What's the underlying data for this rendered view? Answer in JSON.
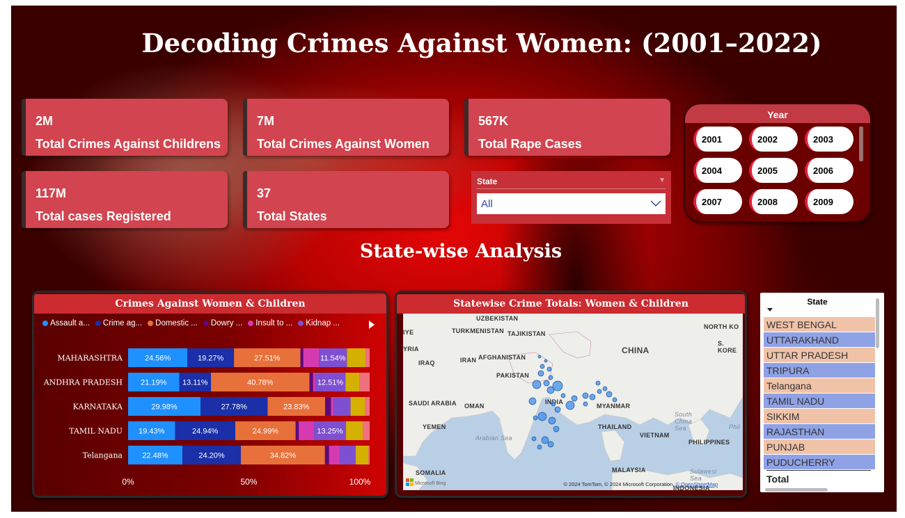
{
  "title": "Decoding Crimes Against Women: (2001–2022)",
  "section_title": "State-wise Analysis",
  "kpis": [
    {
      "value": "2M",
      "label": "Total Crimes Against Childrens"
    },
    {
      "value": "7M",
      "label": "Total Crimes Against Women"
    },
    {
      "value": "567K",
      "label": "Total Rape Cases"
    },
    {
      "value": "117M",
      "label": "Total cases Registered"
    },
    {
      "value": "37",
      "label": "Total States"
    }
  ],
  "state_slicer": {
    "label": "State",
    "selected": "All"
  },
  "year_slicer": {
    "label": "Year",
    "years": [
      "2001",
      "2002",
      "2003",
      "2004",
      "2005",
      "2006",
      "2007",
      "2008",
      "2009"
    ]
  },
  "bar_chart": {
    "title": "Crimes Against Women & Children",
    "legend": [
      {
        "label": "Assault a...",
        "color": "#1e90ff"
      },
      {
        "label": "Crime ag...",
        "color": "#1a2fa8"
      },
      {
        "label": "Domestic ...",
        "color": "#e8703a"
      },
      {
        "label": "Dowry ...",
        "color": "#5c0a7a"
      },
      {
        "label": "Insult to ...",
        "color": "#d63ab0"
      },
      {
        "label": "Kidnap ...",
        "color": "#7e4fd0"
      }
    ]
  },
  "chart_data": {
    "type": "bar",
    "orientation": "horizontal",
    "stacked": "100%",
    "categories": [
      "MAHARASHTRA",
      "ANDHRA PRADESH",
      "KARNATAKA",
      "TAMIL NADU",
      "Telangana"
    ],
    "series": [
      {
        "name": "Assault a...",
        "color": "#1e90ff",
        "values": [
          24.56,
          21.19,
          29.98,
          19.43,
          22.48
        ]
      },
      {
        "name": "Crime ag...",
        "color": "#1a2fa8",
        "values": [
          19.27,
          13.11,
          27.78,
          24.94,
          24.2
        ]
      },
      {
        "name": "Domestic ...",
        "color": "#e8703a",
        "values": [
          27.51,
          40.78,
          23.83,
          24.99,
          34.82
        ]
      },
      {
        "name": "Dowry ...",
        "color": "#5c0a7a",
        "values": [
          1.2,
          1.5,
          2.4,
          1.3,
          1.7
        ]
      },
      {
        "name": "Insult to ...",
        "color": "#d63ab0",
        "values": [
          6.5,
          0.9,
          1.1,
          6.3,
          4.4
        ]
      },
      {
        "name": "Kidnap ...",
        "color": "#7e4fd0",
        "values": [
          11.54,
          12.51,
          7.0,
          13.25,
          6.6
        ]
      },
      {
        "name": "",
        "color": "#d4b000",
        "values": [
          7.8,
          5.9,
          5.9,
          6.9,
          5.3
        ]
      },
      {
        "name": "",
        "color": "#f07080",
        "values": [
          1.62,
          4.11,
          2.01,
          2.89,
          0.5
        ]
      }
    ],
    "data_labels_shown": [
      [
        "24.56%",
        "19.27%",
        "27.51%",
        "",
        "",
        "11.54%",
        "",
        ""
      ],
      [
        "21.19%",
        "13.11%",
        "40.78%",
        "",
        "",
        "12.51%",
        "",
        ""
      ],
      [
        "29.98%",
        "27.78%",
        "23.83%",
        "",
        "",
        "",
        "",
        ""
      ],
      [
        "19.43%",
        "24.94%",
        "24.99%",
        "",
        "",
        "13.25%",
        "",
        ""
      ],
      [
        "22.48%",
        "24.20%",
        "34.82%",
        "",
        "",
        "",
        "",
        ""
      ]
    ],
    "x_ticks": [
      "0%",
      "50%",
      "100%"
    ],
    "xlim": [
      0,
      100
    ]
  },
  "map": {
    "title": "Statewise Crime Totals: Women & Children",
    "credit": "© 2024 TomTom, © 2024 Microsoft Corporation, ",
    "credit_link": "© OpenStreetMap",
    "bing_label": "Microsoft Bing",
    "place_labels": {
      "uzbekistan": "UZBEKISTAN",
      "turkmenistan": "TURKMENISTAN",
      "tajikistan": "TAJIKISTAN",
      "north_korea": "NORTH KO",
      "south_korea": "S. KORE",
      "china": "CHINA",
      "iraq": "IRAQ",
      "iran": "IRAN",
      "afghanistan": "AFGHANISTAN",
      "pakistan": "PAKISTAN",
      "syria": "YRIA",
      "lye": "IYE",
      "india": "INDIA",
      "saudi": "SAUDI ARABIA",
      "oman": "OMAN",
      "myanmar": "MYANMAR",
      "yemen": "YEMEN",
      "arabian_sea": "Arabian Sea",
      "thailand": "THAILAND",
      "vietnam": "VIETNAM",
      "philippines": "PHILIPPINES",
      "south_china_sea": "South China Sea",
      "phil": "Phil",
      "malaysia": "MALAYSIA",
      "sulawesi": "Sulawesi Sea",
      "somalia": "SOMALIA",
      "indonesia": "INDONESIA"
    }
  },
  "state_table": {
    "header": "State",
    "rows": [
      "WEST BENGAL",
      "UTTARAKHAND",
      "UTTAR PRADESH",
      "TRIPURA",
      "Telangana",
      "TAMIL NADU",
      "SIKKIM",
      "RAJASTHAN",
      "PUNJAB",
      "PUDUCHERRY"
    ],
    "total_label": "Total"
  }
}
